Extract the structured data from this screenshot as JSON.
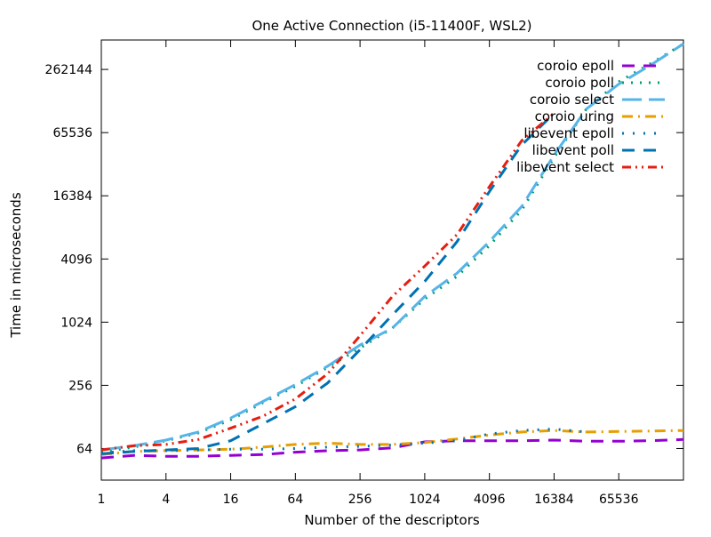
{
  "chart_data": {
    "type": "line",
    "title": "One Active Connection (i5-11400F, WSL2)",
    "xlabel": "Number of the descriptors",
    "ylabel": "Time in microseconds",
    "x_scale": "log2",
    "y_scale": "log2",
    "xlim": [
      1,
      262144
    ],
    "ylim": [
      32,
      500000
    ],
    "x_ticks": [
      1,
      4,
      16,
      64,
      256,
      1024,
      4096,
      16384,
      65536
    ],
    "x_tick_labels": [
      "1",
      "4",
      "16",
      "64",
      "256",
      "1024",
      "4096",
      "16384",
      "65536"
    ],
    "y_ticks": [
      64,
      256,
      1024,
      4096,
      16384,
      65536,
      262144
    ],
    "y_tick_labels": [
      "64",
      "256",
      "1024",
      "4096",
      "16384",
      "65536",
      "262144"
    ],
    "grid": false,
    "legend_position": "top-right",
    "series": [
      {
        "name": "coroio epoll",
        "color": "#9400d3",
        "dash": "dash",
        "x": [
          1,
          2,
          4,
          8,
          16,
          32,
          64,
          128,
          256,
          512,
          1024,
          2048,
          4096,
          8192,
          16384,
          32768,
          65536,
          131072,
          262144
        ],
        "y": [
          52,
          55,
          54,
          54,
          55,
          56,
          59,
          61,
          62,
          65,
          74,
          76,
          76,
          76,
          77,
          75,
          75,
          76,
          78
        ]
      },
      {
        "name": "coroio poll",
        "color": "#009e73",
        "dash": "dot",
        "x": [
          1,
          2,
          4,
          8,
          16,
          32,
          64,
          128,
          256,
          512,
          1024,
          2048,
          4096,
          8192,
          16384,
          32768,
          65536,
          131072,
          262144
        ],
        "y": [
          59,
          66,
          76,
          90,
          120,
          175,
          250,
          380,
          580,
          900,
          1700,
          2800,
          5500,
          12000,
          38000,
          110000,
          200000,
          300000,
          460000
        ]
      },
      {
        "name": "coroio select",
        "color": "#56b4e9",
        "dash": "longdash",
        "x": [
          1,
          2,
          4,
          8,
          16,
          32,
          64,
          128,
          256,
          512,
          1024,
          2048,
          4096,
          8192,
          16384,
          32768,
          65536,
          131072,
          262144
        ],
        "y": [
          62,
          68,
          77,
          92,
          125,
          180,
          260,
          390,
          620,
          900,
          1800,
          3000,
          6000,
          13000,
          40000,
          110000,
          190000,
          290000,
          460000
        ]
      },
      {
        "name": "coroio uring",
        "color": "#e69f00",
        "dash": "dashdot",
        "x": [
          1,
          2,
          4,
          8,
          16,
          32,
          64,
          128,
          256,
          512,
          1024,
          2048,
          4096,
          8192,
          16384,
          32768,
          65536,
          131072,
          262144
        ],
        "y": [
          56,
          60,
          61,
          62,
          63,
          66,
          70,
          72,
          70,
          70,
          73,
          79,
          86,
          92,
          95,
          92,
          93,
          94,
          95
        ]
      },
      {
        "name": "libevent epoll",
        "color": "#0072b2",
        "dash": "dotted-sparse",
        "x": [
          1,
          2,
          4,
          8,
          16,
          32,
          64,
          128,
          256,
          512,
          1024,
          2048,
          4096,
          8192,
          16384,
          32768
        ],
        "y": [
          58,
          61,
          61,
          62,
          63,
          63,
          64,
          66,
          67,
          69,
          72,
          76,
          88,
          95,
          98,
          92
        ]
      },
      {
        "name": "libevent poll",
        "color": "#0072b2",
        "dash": "dash",
        "x": [
          1,
          2,
          4,
          8,
          16,
          32,
          64,
          128,
          256,
          512,
          1024,
          2048,
          4096,
          8192,
          16384
        ],
        "y": [
          57,
          60,
          62,
          64,
          76,
          110,
          160,
          270,
          560,
          1200,
          2500,
          6000,
          18000,
          50000,
          100000
        ]
      },
      {
        "name": "libevent select",
        "color": "#e51e10",
        "dash": "dashdotdot",
        "x": [
          1,
          2,
          4,
          8,
          16,
          32,
          64,
          128,
          256,
          512,
          1024,
          2048,
          4096,
          8192,
          16384
        ],
        "y": [
          62,
          68,
          70,
          78,
          100,
          130,
          190,
          330,
          760,
          1800,
          3500,
          7000,
          20000,
          55000,
          100000
        ]
      }
    ]
  }
}
